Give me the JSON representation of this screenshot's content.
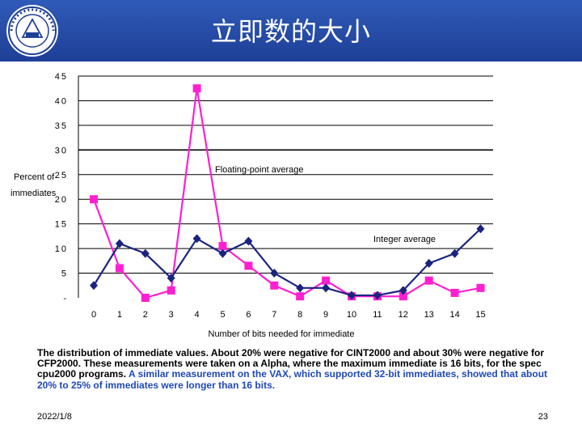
{
  "slide": {
    "title": "立即数的大小",
    "caption_plain": "The distribution of immediate values. About 20% were negative for CINT2000 and about 30% were negative for CFP2000. These measurements were taken on a Alpha, where the maximum immediate is 16 bits, for the spec cpu2000 programs. ",
    "caption_highlight": "A similar measurement on the VAX, which supported 32-bit immediates, showed that about 20% to 25% of immediates were longer than 16 bits.",
    "date": "2022/1/8",
    "page": "23"
  },
  "colors": {
    "header": "#2a52ac",
    "integer": "#1a237e",
    "floating": "#ff1fd0",
    "highlight": "#1f49b8"
  },
  "chart_data": {
    "type": "line",
    "x": [
      0,
      1,
      2,
      3,
      4,
      5,
      6,
      7,
      8,
      9,
      10,
      11,
      12,
      13,
      14,
      15
    ],
    "x_tick_labels": [
      "0",
      "1",
      "2",
      "3",
      "4",
      "5",
      "6",
      "7",
      "8",
      "9",
      "10",
      "11",
      "12",
      "13",
      "14",
      "15"
    ],
    "y_tick_labels": [
      "45",
      "40",
      "35",
      "30",
      "25",
      "20",
      "15",
      "10",
      "5",
      "-"
    ],
    "y_ticks": [
      45,
      40,
      35,
      30,
      25,
      20,
      15,
      10,
      5,
      0
    ],
    "ylim": [
      0,
      45
    ],
    "grid": true,
    "xlabel": "Number of bits needed for immediate",
    "ylabel_line1": "Percent of",
    "ylabel_line2": "immediates",
    "series": [
      {
        "name": "Floating-point average",
        "color": "#ff1fd0",
        "marker": "square",
        "values": [
          20,
          6,
          0,
          1.5,
          42.5,
          10.5,
          6.5,
          2.5,
          0.3,
          3.5,
          0.3,
          0.3,
          0.3,
          3.5,
          1,
          2
        ]
      },
      {
        "name": "Integer average",
        "color": "#1a237e",
        "marker": "diamond",
        "values": [
          2.5,
          11,
          9,
          4,
          12,
          9,
          11.5,
          5,
          2,
          2,
          0.5,
          0.5,
          1.5,
          7,
          9,
          14
        ]
      }
    ]
  }
}
